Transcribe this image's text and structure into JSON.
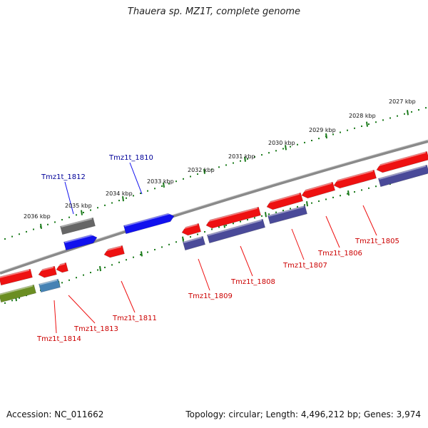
{
  "title": "Thauera sp. MZ1T, complete genome",
  "footer": {
    "accession": "Accession: NC_011662",
    "summary": "Topology: circular; Length: 4,496,212 bp; Genes: 3,974"
  },
  "colors": {
    "backbone": "#8a8a8a",
    "tick": "#1a7a1a",
    "gene_red": "#ee1111",
    "gene_blue": "#1111ee",
    "gene_navy": "#4a4a99",
    "gene_gray": "#666666",
    "gene_olive": "#6b8e23",
    "gene_steel": "#4682b4",
    "label_red": "#cc0000",
    "label_blue": "#000099"
  },
  "kbp_labels": [
    "2036 kbp",
    "2035 kbp",
    "2034 kbp",
    "2033 kbp",
    "2032 kbp",
    "2031 kbp",
    "2030 kbp",
    "2029 kbp",
    "2028 kbp",
    "2027 kbp"
  ],
  "gene_labels": {
    "top": [
      "Tmz1t_1812",
      "Tmz1t_1810"
    ],
    "bottom": [
      "Tmz1t_1814",
      "Tmz1t_1813",
      "Tmz1t_1811",
      "Tmz1t_1809",
      "Tmz1t_1808",
      "Tmz1t_1807",
      "Tmz1t_1806",
      "Tmz1t_1805"
    ]
  }
}
